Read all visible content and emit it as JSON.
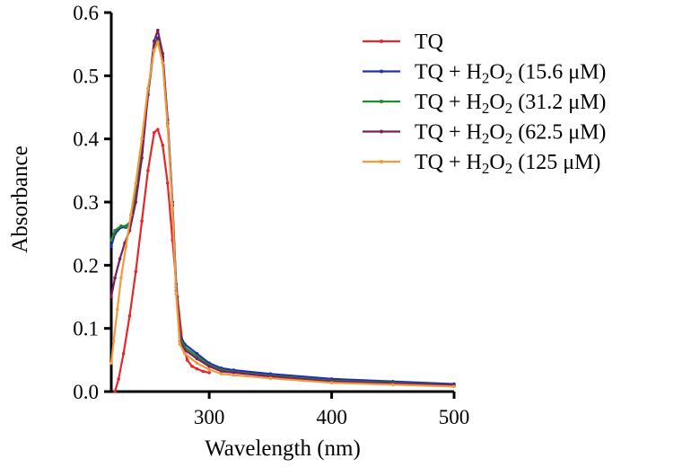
{
  "chart_data": {
    "type": "line",
    "title": "",
    "xlabel": "Wavelength (nm)",
    "ylabel": "Absorbance",
    "xlim": [
      220,
      500
    ],
    "ylim": [
      0,
      0.6
    ],
    "xticks": [
      300,
      400,
      500
    ],
    "xtick_labels": [
      "300",
      "400",
      "500"
    ],
    "yticks": [
      0,
      0.1,
      0.2,
      0.3,
      0.4,
      0.5,
      0.6
    ],
    "ytick_labels": [
      "0.0",
      "0.1",
      "0.2",
      "0.3",
      "0.4",
      "0.5",
      "0.6"
    ],
    "legend_position": "top-right",
    "series": [
      {
        "name": "TQ",
        "label_parts": [
          "TQ"
        ],
        "color": "#e8252a",
        "x": [
          223,
          226,
          230,
          235,
          240,
          245,
          250,
          255,
          258,
          262,
          266,
          270,
          274,
          278,
          282,
          286,
          290,
          295,
          300
        ],
        "y": [
          0.0,
          0.02,
          0.06,
          0.12,
          0.19,
          0.27,
          0.35,
          0.41,
          0.415,
          0.39,
          0.33,
          0.24,
          0.15,
          0.08,
          0.05,
          0.04,
          0.036,
          0.032,
          0.03
        ]
      },
      {
        "name": "TQ + H2O2 (15.6 μM)",
        "label_parts": [
          "TQ + H",
          "2",
          "O",
          "2",
          " (15.6 μM)"
        ],
        "color": "#2032a8",
        "x": [
          220,
          223,
          228,
          232,
          236,
          240,
          245,
          250,
          255,
          258,
          262,
          266,
          270,
          273,
          276,
          280,
          290,
          300,
          310,
          320,
          350,
          400,
          450,
          500
        ],
        "y": [
          0.23,
          0.25,
          0.26,
          0.26,
          0.27,
          0.31,
          0.38,
          0.47,
          0.545,
          0.56,
          0.53,
          0.43,
          0.3,
          0.17,
          0.09,
          0.075,
          0.06,
          0.045,
          0.037,
          0.034,
          0.028,
          0.02,
          0.016,
          0.012
        ]
      },
      {
        "name": "TQ + H2O2 (31.2 μM)",
        "label_parts": [
          "TQ + H",
          "2",
          "O",
          "2",
          " (31.2 μM)"
        ],
        "color": "#1f8a2e",
        "x": [
          220,
          223,
          228,
          232,
          236,
          240,
          245,
          250,
          255,
          258,
          262,
          266,
          270,
          273,
          276,
          280,
          290,
          300,
          310,
          320,
          350,
          400,
          450,
          500
        ],
        "y": [
          0.24,
          0.255,
          0.262,
          0.262,
          0.27,
          0.31,
          0.38,
          0.47,
          0.545,
          0.555,
          0.525,
          0.425,
          0.295,
          0.165,
          0.085,
          0.07,
          0.056,
          0.042,
          0.034,
          0.031,
          0.025,
          0.017,
          0.014,
          0.01
        ]
      },
      {
        "name": "TQ + H2O2 (62.5 μM)",
        "label_parts": [
          "TQ + H",
          "2",
          "O",
          "2",
          " (62.5 μM)"
        ],
        "color": "#7d1f5e",
        "x": [
          220,
          223,
          227,
          231,
          235,
          240,
          245,
          250,
          255,
          258,
          262,
          266,
          270,
          273,
          276,
          280,
          290,
          300,
          310,
          320,
          350,
          400,
          450,
          500
        ],
        "y": [
          0.15,
          0.18,
          0.21,
          0.235,
          0.255,
          0.3,
          0.37,
          0.47,
          0.555,
          0.572,
          0.535,
          0.43,
          0.295,
          0.16,
          0.08,
          0.066,
          0.052,
          0.04,
          0.032,
          0.03,
          0.024,
          0.016,
          0.013,
          0.01
        ]
      },
      {
        "name": "TQ + H2O2 (125 μM)",
        "label_parts": [
          "TQ + H",
          "2",
          "O",
          "2",
          " (125 μM)"
        ],
        "color": "#f39a3c",
        "x": [
          220,
          222,
          225,
          228,
          232,
          236,
          240,
          245,
          250,
          255,
          258,
          262,
          266,
          270,
          273,
          276,
          280,
          290,
          300,
          310,
          320,
          350,
          400,
          450,
          500
        ],
        "y": [
          0.045,
          0.08,
          0.13,
          0.18,
          0.23,
          0.28,
          0.33,
          0.4,
          0.48,
          0.54,
          0.553,
          0.52,
          0.42,
          0.29,
          0.155,
          0.075,
          0.06,
          0.045,
          0.035,
          0.028,
          0.026,
          0.021,
          0.014,
          0.011,
          0.008
        ]
      }
    ]
  }
}
